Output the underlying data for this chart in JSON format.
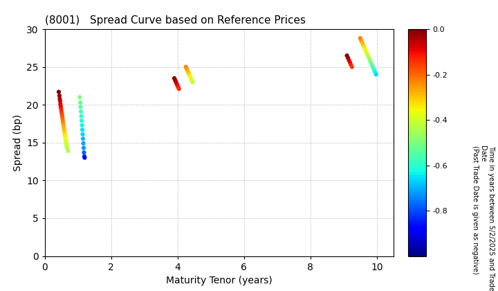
{
  "title": "(8001)   Spread Curve based on Reference Prices",
  "xlabel": "Maturity Tenor (years)",
  "ylabel": "Spread (bp)",
  "colorbar_label_line1": "Time in years between 5/2/2025 and Trade Date",
  "colorbar_label_line2": "(Past Trade Date is given as negative)",
  "cbar_vmin": -1.0,
  "cbar_vmax": 0.0,
  "cbar_ticks": [
    0.0,
    -0.2,
    -0.4,
    -0.6,
    -0.8
  ],
  "xlim": [
    0,
    10.5
  ],
  "ylim": [
    0,
    30
  ],
  "xticks": [
    0,
    2,
    4,
    6,
    8,
    10
  ],
  "yticks": [
    0,
    5,
    10,
    15,
    20,
    25,
    30
  ],
  "clusters": [
    {
      "points": [
        [
          0.42,
          21.7,
          0.0
        ],
        [
          0.44,
          21.2,
          -0.02
        ],
        [
          0.45,
          20.8,
          -0.04
        ],
        [
          0.46,
          20.5,
          -0.06
        ],
        [
          0.47,
          20.1,
          -0.08
        ],
        [
          0.48,
          19.8,
          -0.09
        ],
        [
          0.49,
          19.5,
          -0.11
        ],
        [
          0.5,
          19.2,
          -0.13
        ],
        [
          0.51,
          18.9,
          -0.15
        ],
        [
          0.52,
          18.6,
          -0.17
        ],
        [
          0.53,
          18.3,
          -0.19
        ],
        [
          0.54,
          18.0,
          -0.21
        ],
        [
          0.55,
          17.7,
          -0.23
        ],
        [
          0.56,
          17.4,
          -0.25
        ],
        [
          0.57,
          17.1,
          -0.27
        ],
        [
          0.58,
          16.8,
          -0.28
        ],
        [
          0.59,
          16.5,
          -0.3
        ],
        [
          0.6,
          16.2,
          -0.32
        ],
        [
          0.61,
          15.9,
          -0.34
        ],
        [
          0.62,
          15.6,
          -0.36
        ],
        [
          0.63,
          15.3,
          -0.37
        ],
        [
          0.64,
          15.0,
          -0.39
        ],
        [
          0.65,
          14.8,
          -0.4
        ],
        [
          0.66,
          14.5,
          -0.42
        ],
        [
          0.68,
          14.2,
          -0.43
        ],
        [
          0.7,
          13.9,
          -0.44
        ]
      ]
    },
    {
      "points": [
        [
          1.05,
          21.0,
          -0.5
        ],
        [
          1.07,
          20.3,
          -0.53
        ],
        [
          1.08,
          19.7,
          -0.55
        ],
        [
          1.09,
          19.1,
          -0.57
        ],
        [
          1.1,
          18.5,
          -0.59
        ],
        [
          1.11,
          17.9,
          -0.61
        ],
        [
          1.12,
          17.3,
          -0.63
        ],
        [
          1.13,
          16.7,
          -0.65
        ],
        [
          1.14,
          16.1,
          -0.67
        ],
        [
          1.15,
          15.5,
          -0.69
        ],
        [
          1.16,
          14.9,
          -0.71
        ],
        [
          1.17,
          14.3,
          -0.73
        ],
        [
          1.18,
          13.7,
          -0.78
        ],
        [
          1.19,
          13.2,
          -0.82
        ],
        [
          1.2,
          13.0,
          -0.88
        ]
      ]
    },
    {
      "points": [
        [
          3.9,
          23.5,
          0.0
        ],
        [
          3.92,
          23.3,
          -0.02
        ],
        [
          3.94,
          23.1,
          -0.04
        ],
        [
          3.96,
          22.9,
          -0.06
        ],
        [
          3.98,
          22.7,
          -0.08
        ],
        [
          4.0,
          22.5,
          -0.1
        ],
        [
          4.02,
          22.3,
          -0.12
        ],
        [
          4.04,
          22.1,
          -0.14
        ]
      ]
    },
    {
      "points": [
        [
          4.25,
          25.0,
          -0.22
        ],
        [
          4.27,
          24.8,
          -0.24
        ],
        [
          4.29,
          24.6,
          -0.26
        ],
        [
          4.31,
          24.4,
          -0.28
        ],
        [
          4.33,
          24.2,
          -0.3
        ],
        [
          4.35,
          24.0,
          -0.32
        ],
        [
          4.37,
          23.8,
          -0.34
        ],
        [
          4.39,
          23.6,
          -0.36
        ],
        [
          4.41,
          23.4,
          -0.38
        ],
        [
          4.43,
          23.2,
          -0.4
        ],
        [
          4.45,
          23.0,
          -0.42
        ]
      ]
    },
    {
      "points": [
        [
          9.1,
          26.5,
          0.0
        ],
        [
          9.13,
          26.2,
          -0.03
        ],
        [
          9.16,
          25.9,
          -0.06
        ],
        [
          9.19,
          25.6,
          -0.09
        ],
        [
          9.22,
          25.3,
          -0.12
        ],
        [
          9.25,
          25.0,
          -0.15
        ]
      ]
    },
    {
      "points": [
        [
          9.5,
          28.8,
          -0.22
        ],
        [
          9.53,
          28.5,
          -0.25
        ],
        [
          9.56,
          28.2,
          -0.28
        ],
        [
          9.59,
          27.9,
          -0.3
        ],
        [
          9.62,
          27.6,
          -0.33
        ],
        [
          9.65,
          27.3,
          -0.35
        ],
        [
          9.68,
          27.0,
          -0.38
        ],
        [
          9.71,
          26.7,
          -0.4
        ],
        [
          9.74,
          26.4,
          -0.43
        ],
        [
          9.77,
          26.1,
          -0.46
        ],
        [
          9.8,
          25.8,
          -0.48
        ],
        [
          9.83,
          25.5,
          -0.51
        ],
        [
          9.86,
          25.2,
          -0.54
        ],
        [
          9.89,
          24.9,
          -0.57
        ],
        [
          9.92,
          24.6,
          -0.6
        ],
        [
          9.95,
          24.3,
          -0.63
        ],
        [
          9.98,
          24.0,
          -0.66
        ]
      ]
    }
  ],
  "background_color": "#ffffff",
  "marker_size": 20,
  "grid_color": "#aaaaaa",
  "grid_style": ":"
}
